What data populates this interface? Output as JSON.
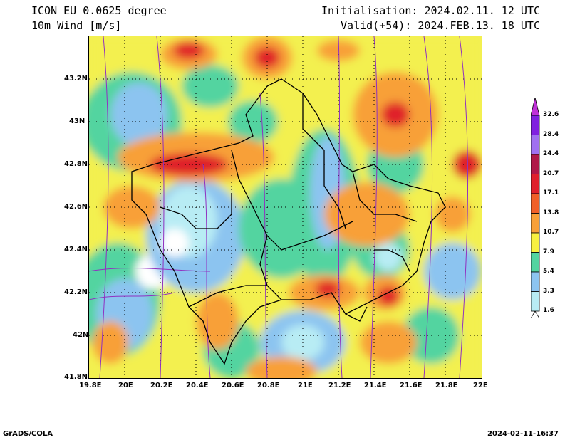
{
  "header": {
    "model": "ICON EU 0.0625 degree",
    "variable": "10m Wind [m/s]",
    "initialisation": "Initialisation: 2024.02.11. 12 UTC",
    "valid": "Valid(+54): 2024.FEB.13. 18 UTC"
  },
  "axes": {
    "lat_labels": [
      "43.2N",
      "43N",
      "42.8N",
      "42.6N",
      "42.4N",
      "42.2N",
      "42N",
      "41.8N"
    ],
    "lon_labels": [
      "19.8E",
      "20E",
      "20.2E",
      "20.4E",
      "20.6E",
      "20.8E",
      "21E",
      "21.2E",
      "21.4E",
      "21.6E",
      "21.8E",
      "22E"
    ],
    "lat_range": [
      41.8,
      43.4
    ],
    "lon_range": [
      19.8,
      22.0
    ]
  },
  "colorbar": {
    "levels": [
      "1.6",
      "3.3",
      "5.4",
      "7.9",
      "10.7",
      "13.8",
      "17.1",
      "20.7",
      "24.4",
      "28.4",
      "32.6"
    ],
    "colors": [
      "#ffffff",
      "#b8ecf4",
      "#8cc4f0",
      "#52d4a0",
      "#f8f040",
      "#f8a038",
      "#f06028",
      "#e0202c",
      "#b01848",
      "#a070f0",
      "#8020e0",
      "#c030d8"
    ]
  },
  "footer": {
    "left": "GrADS/COLA",
    "right": "2024-02-11-16:37"
  }
}
